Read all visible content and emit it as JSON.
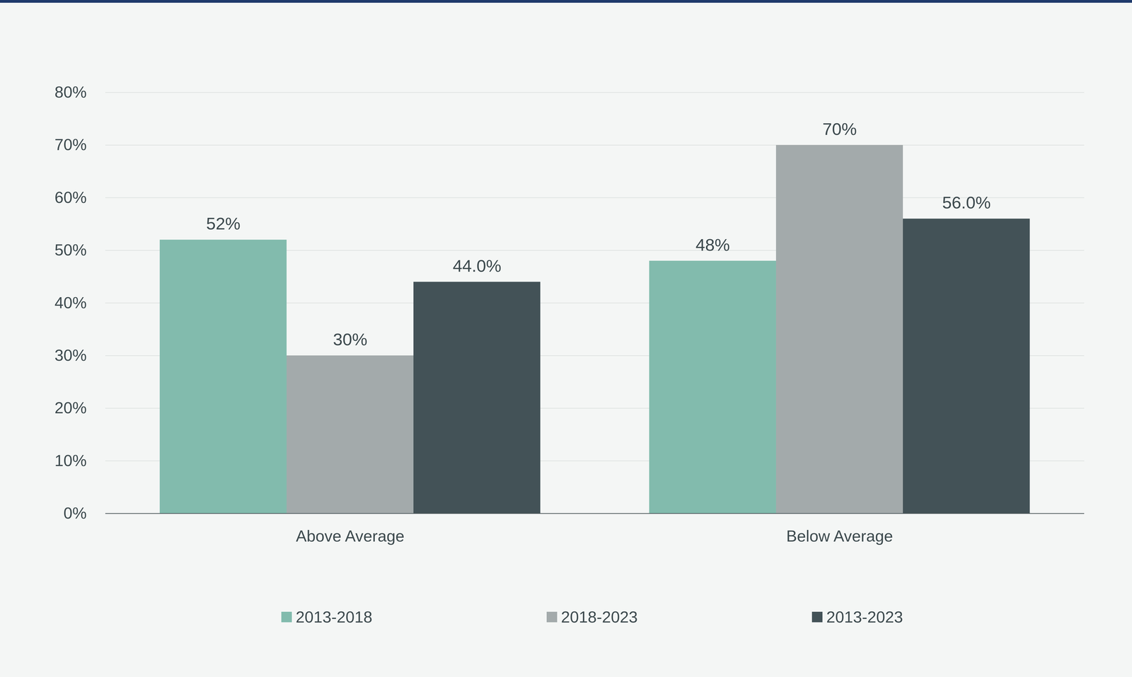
{
  "chart_data": {
    "type": "bar",
    "categories": [
      "Above Average",
      "Below Average"
    ],
    "series": [
      {
        "name": "2013-2018",
        "color": "#82bbad",
        "values": [
          52,
          48
        ],
        "value_labels": [
          "52%",
          "48%"
        ]
      },
      {
        "name": "2018-2023",
        "color": "#a3aaab",
        "values": [
          30,
          70
        ],
        "value_labels": [
          "30%",
          "70%"
        ]
      },
      {
        "name": "2013-2023",
        "color": "#435257",
        "values": [
          44.0,
          56.0
        ],
        "value_labels": [
          "44.0%",
          "56.0%"
        ]
      }
    ],
    "ylim": [
      0,
      80
    ],
    "yticks": [
      {
        "value": 0,
        "label": "0%"
      },
      {
        "value": 10,
        "label": "10%"
      },
      {
        "value": 20,
        "label": "20%"
      },
      {
        "value": 30,
        "label": "30%"
      },
      {
        "value": 40,
        "label": "40%"
      },
      {
        "value": 50,
        "label": "50%"
      },
      {
        "value": 60,
        "label": "60%"
      },
      {
        "value": 70,
        "label": "70%"
      },
      {
        "value": 80,
        "label": "80%"
      }
    ],
    "grid": true,
    "legend": "bottom",
    "data_labels": true
  }
}
